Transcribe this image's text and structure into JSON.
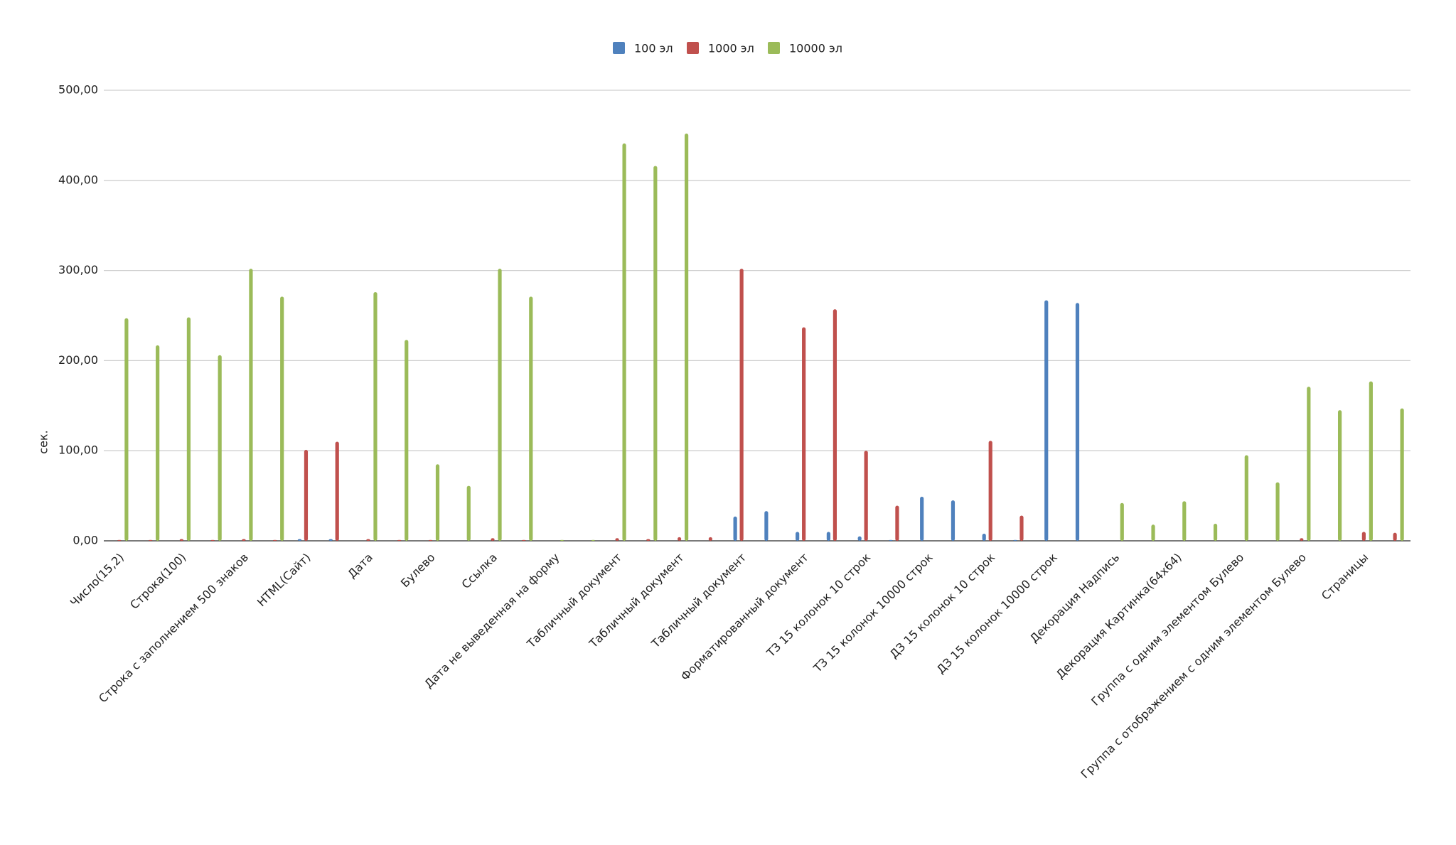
{
  "chart_data": {
    "type": "bar",
    "y_label": "сек.",
    "categories": [
      "Число(15,2)",
      null,
      "Строка(100)",
      null,
      "Строка с заполнением 500 знаков",
      null,
      "HTML(Сайт)",
      null,
      "Дата",
      null,
      "Булево",
      null,
      "Ссылка",
      null,
      "Дата не выведенная на форму",
      null,
      "Табличный документ",
      null,
      "Табличный документ",
      null,
      "Табличный документ",
      null,
      "Форматированный документ",
      null,
      "ТЗ 15 колонок 10 строк",
      null,
      "ТЗ 15 колонок 10000 строк",
      null,
      "ДЗ 15 колонок 10 строк",
      null,
      "ДЗ 15 колонок 10000 строк",
      null,
      "Декорация Надпись",
      null,
      "Декорация Картинка(64x64)",
      null,
      "Группа с одним элементом Булево",
      null,
      "Группа с отображением с одним элементом Булево",
      null,
      "Страницы",
      null
    ],
    "series": [
      {
        "name": "100 эл",
        "color": "#4f81bd",
        "values": [
          0,
          0,
          0,
          0,
          0,
          0,
          2,
          2,
          0,
          0,
          0,
          0,
          0,
          0,
          0,
          0,
          0,
          0,
          0,
          0,
          27,
          33,
          10,
          10,
          5,
          1,
          49,
          45,
          8,
          1,
          267,
          264,
          0,
          0,
          0,
          0,
          0,
          0,
          0,
          0,
          0,
          0
        ]
      },
      {
        "name": "1000 эл",
        "color": "#c0504d",
        "values": [
          1,
          1,
          2,
          1,
          2,
          1,
          101,
          110,
          2,
          1,
          1,
          0,
          3,
          1,
          0,
          0,
          3,
          2,
          4,
          4,
          302,
          0,
          237,
          257,
          100,
          39,
          0,
          0,
          111,
          28,
          0,
          0,
          0,
          0,
          0,
          0,
          0,
          0,
          3,
          0,
          10,
          9
        ]
      },
      {
        "name": "10000 эл",
        "color": "#9bbb59",
        "values": [
          247,
          217,
          248,
          206,
          302,
          271,
          0,
          0,
          276,
          223,
          85,
          61,
          302,
          271,
          1,
          1,
          441,
          416,
          452,
          0,
          0,
          0,
          0,
          0,
          0,
          0,
          0,
          0,
          0,
          0,
          0,
          0,
          42,
          18,
          44,
          19,
          95,
          65,
          171,
          145,
          177,
          147
        ]
      }
    ],
    "ylim": [
      0,
      500
    ],
    "yticks": [
      {
        "value": 0,
        "label": "0,00"
      },
      {
        "value": 100,
        "label": "100,00"
      },
      {
        "value": 200,
        "label": "200,00"
      },
      {
        "value": 300,
        "label": "300,00"
      },
      {
        "value": 400,
        "label": "400,00"
      },
      {
        "value": 500,
        "label": "500,00"
      }
    ],
    "grid": true,
    "legend": "top"
  }
}
